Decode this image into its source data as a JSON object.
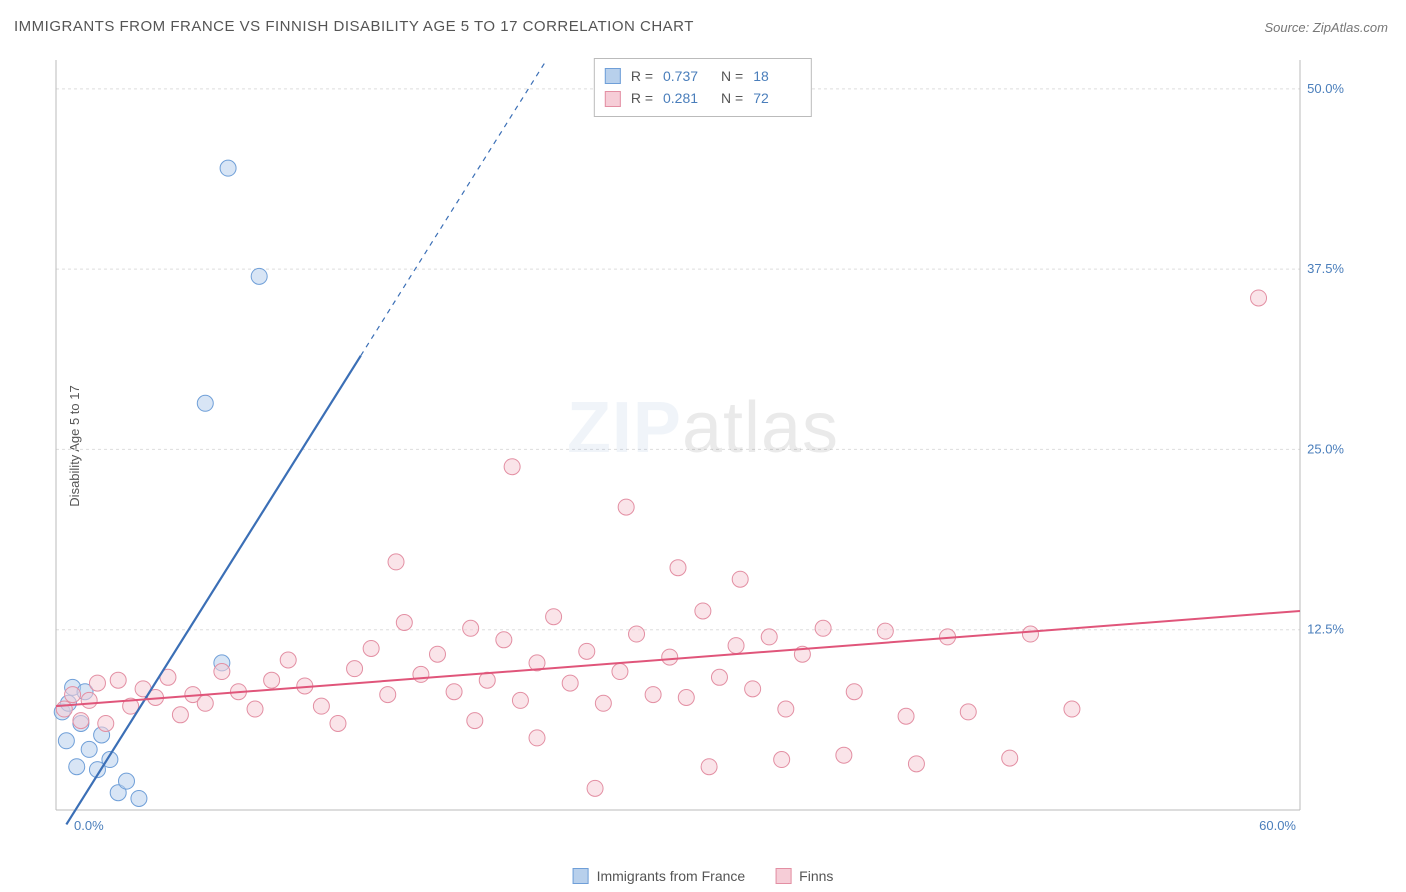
{
  "title": "IMMIGRANTS FROM FRANCE VS FINNISH DISABILITY AGE 5 TO 17 CORRELATION CHART",
  "source_prefix": "Source: ",
  "source_name": "ZipAtlas.com",
  "y_axis_label": "Disability Age 5 to 17",
  "watermark_a": "ZIP",
  "watermark_b": "atlas",
  "chart": {
    "type": "scatter",
    "xlim": [
      0,
      60
    ],
    "ylim": [
      0,
      52
    ],
    "x_ticks": [
      {
        "v": 0,
        "label": "0.0%"
      },
      {
        "v": 60,
        "label": "60.0%"
      }
    ],
    "y_ticks": [
      {
        "v": 12.5,
        "label": "12.5%"
      },
      {
        "v": 25,
        "label": "25.0%"
      },
      {
        "v": 37.5,
        "label": "37.5%"
      },
      {
        "v": 50,
        "label": "50.0%"
      }
    ],
    "grid_color": "#dddddd",
    "axis_color": "#bbbbbb",
    "background_color": "#ffffff",
    "marker_radius": 8,
    "marker_opacity": 0.55,
    "series": [
      {
        "key": "france",
        "label": "Immigrants from France",
        "color_fill": "#b8d0ec",
        "color_stroke": "#6f9fd8",
        "R": "0.737",
        "N": "18",
        "trend": {
          "x1": 0.5,
          "y1": -1.0,
          "x2": 14.7,
          "y2": 31.5,
          "color": "#3b6fb6",
          "width": 2.2,
          "dash_extend_to_y": 52
        },
        "points": [
          {
            "x": 0.3,
            "y": 6.8
          },
          {
            "x": 0.5,
            "y": 4.8
          },
          {
            "x": 0.6,
            "y": 7.4
          },
          {
            "x": 0.8,
            "y": 8.5
          },
          {
            "x": 1.0,
            "y": 3.0
          },
          {
            "x": 1.2,
            "y": 6.0
          },
          {
            "x": 1.4,
            "y": 8.2
          },
          {
            "x": 1.6,
            "y": 4.2
          },
          {
            "x": 2.0,
            "y": 2.8
          },
          {
            "x": 2.2,
            "y": 5.2
          },
          {
            "x": 2.6,
            "y": 3.5
          },
          {
            "x": 3.0,
            "y": 1.2
          },
          {
            "x": 3.4,
            "y": 2.0
          },
          {
            "x": 4.0,
            "y": 0.8
          },
          {
            "x": 7.2,
            "y": 28.2
          },
          {
            "x": 8.0,
            "y": 10.2
          },
          {
            "x": 8.3,
            "y": 44.5
          },
          {
            "x": 9.8,
            "y": 37.0
          }
        ]
      },
      {
        "key": "finns",
        "label": "Finns",
        "color_fill": "#f6cdd7",
        "color_stroke": "#e38fa3",
        "R": "0.281",
        "N": "72",
        "trend": {
          "x1": 0,
          "y1": 7.2,
          "x2": 60,
          "y2": 13.8,
          "color": "#e0557a",
          "width": 2.0
        },
        "points": [
          {
            "x": 0.4,
            "y": 7.0
          },
          {
            "x": 0.8,
            "y": 8.0
          },
          {
            "x": 1.2,
            "y": 6.2
          },
          {
            "x": 1.6,
            "y": 7.6
          },
          {
            "x": 2.0,
            "y": 8.8
          },
          {
            "x": 2.4,
            "y": 6.0
          },
          {
            "x": 3.0,
            "y": 9.0
          },
          {
            "x": 3.6,
            "y": 7.2
          },
          {
            "x": 4.2,
            "y": 8.4
          },
          {
            "x": 4.8,
            "y": 7.8
          },
          {
            "x": 5.4,
            "y": 9.2
          },
          {
            "x": 6.0,
            "y": 6.6
          },
          {
            "x": 6.6,
            "y": 8.0
          },
          {
            "x": 7.2,
            "y": 7.4
          },
          {
            "x": 8.0,
            "y": 9.6
          },
          {
            "x": 8.8,
            "y": 8.2
          },
          {
            "x": 9.6,
            "y": 7.0
          },
          {
            "x": 10.4,
            "y": 9.0
          },
          {
            "x": 11.2,
            "y": 10.4
          },
          {
            "x": 12.0,
            "y": 8.6
          },
          {
            "x": 12.8,
            "y": 7.2
          },
          {
            "x": 13.6,
            "y": 6.0
          },
          {
            "x": 14.4,
            "y": 9.8
          },
          {
            "x": 15.2,
            "y": 11.2
          },
          {
            "x": 16.0,
            "y": 8.0
          },
          {
            "x": 16.4,
            "y": 17.2
          },
          {
            "x": 16.8,
            "y": 13.0
          },
          {
            "x": 17.6,
            "y": 9.4
          },
          {
            "x": 18.4,
            "y": 10.8
          },
          {
            "x": 19.2,
            "y": 8.2
          },
          {
            "x": 20.0,
            "y": 12.6
          },
          {
            "x": 20.2,
            "y": 6.2
          },
          {
            "x": 20.8,
            "y": 9.0
          },
          {
            "x": 21.6,
            "y": 11.8
          },
          {
            "x": 22.0,
            "y": 23.8
          },
          {
            "x": 22.4,
            "y": 7.6
          },
          {
            "x": 23.2,
            "y": 10.2
          },
          {
            "x": 23.2,
            "y": 5.0
          },
          {
            "x": 24.0,
            "y": 13.4
          },
          {
            "x": 24.8,
            "y": 8.8
          },
          {
            "x": 25.6,
            "y": 11.0
          },
          {
            "x": 26.0,
            "y": 1.5
          },
          {
            "x": 26.4,
            "y": 7.4
          },
          {
            "x": 27.2,
            "y": 9.6
          },
          {
            "x": 27.5,
            "y": 21.0
          },
          {
            "x": 28.0,
            "y": 12.2
          },
          {
            "x": 28.8,
            "y": 8.0
          },
          {
            "x": 29.6,
            "y": 10.6
          },
          {
            "x": 30.0,
            "y": 16.8
          },
          {
            "x": 30.4,
            "y": 7.8
          },
          {
            "x": 31.2,
            "y": 13.8
          },
          {
            "x": 31.5,
            "y": 3.0
          },
          {
            "x": 32.0,
            "y": 9.2
          },
          {
            "x": 32.8,
            "y": 11.4
          },
          {
            "x": 33.0,
            "y": 16.0
          },
          {
            "x": 33.6,
            "y": 8.4
          },
          {
            "x": 34.4,
            "y": 12.0
          },
          {
            "x": 35.0,
            "y": 3.5
          },
          {
            "x": 35.2,
            "y": 7.0
          },
          {
            "x": 36.0,
            "y": 10.8
          },
          {
            "x": 37.0,
            "y": 12.6
          },
          {
            "x": 38.0,
            "y": 3.8
          },
          {
            "x": 38.5,
            "y": 8.2
          },
          {
            "x": 40.0,
            "y": 12.4
          },
          {
            "x": 41.0,
            "y": 6.5
          },
          {
            "x": 41.5,
            "y": 3.2
          },
          {
            "x": 43.0,
            "y": 12.0
          },
          {
            "x": 44.0,
            "y": 6.8
          },
          {
            "x": 46.0,
            "y": 3.6
          },
          {
            "x": 47.0,
            "y": 12.2
          },
          {
            "x": 49.0,
            "y": 7.0
          },
          {
            "x": 58.0,
            "y": 35.5
          }
        ]
      }
    ]
  }
}
